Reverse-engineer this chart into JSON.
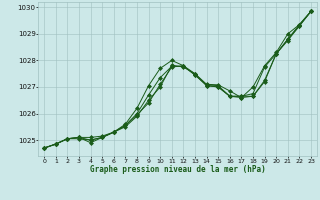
{
  "title": "Graphe pression niveau de la mer (hPa)",
  "bg_color": "#cce8e8",
  "line_color": "#1a5c1a",
  "grid_color": "#a0c0c0",
  "xlim": [
    -0.5,
    23.5
  ],
  "ylim": [
    1024.4,
    1030.2
  ],
  "yticks": [
    1025,
    1026,
    1027,
    1028,
    1029,
    1030
  ],
  "xticks": [
    0,
    1,
    2,
    3,
    4,
    5,
    6,
    7,
    8,
    9,
    10,
    11,
    12,
    13,
    14,
    15,
    16,
    17,
    18,
    19,
    20,
    21,
    22,
    23
  ],
  "series": [
    {
      "x": [
        0,
        1,
        2,
        3,
        4,
        5,
        6,
        7,
        8,
        9,
        10,
        11,
        12,
        13,
        14,
        15,
        16,
        17,
        18,
        19,
        20,
        21,
        22,
        23
      ],
      "y": [
        1024.7,
        1024.85,
        1025.05,
        1025.1,
        1024.9,
        1025.1,
        1025.3,
        1025.5,
        1025.9,
        1026.5,
        1027.0,
        1027.82,
        1027.75,
        1027.5,
        1027.05,
        1027.0,
        1026.65,
        1026.6,
        1027.0,
        1027.8,
        1028.3,
        1029.0,
        1029.35,
        1029.85
      ]
    },
    {
      "x": [
        0,
        1,
        2,
        3,
        4,
        5,
        6,
        7,
        8,
        9,
        10,
        11,
        12,
        13,
        14,
        15,
        16,
        17,
        18,
        19,
        20,
        21,
        22,
        23
      ],
      "y": [
        1024.7,
        1024.85,
        1025.05,
        1025.1,
        1025.0,
        1025.1,
        1025.3,
        1025.55,
        1026.0,
        1026.7,
        1027.35,
        1027.78,
        1027.78,
        1027.45,
        1027.05,
        1027.0,
        1026.65,
        1026.65,
        1026.75,
        1027.75,
        1028.25,
        1028.75,
        1029.3,
        1029.85
      ]
    },
    {
      "x": [
        0,
        1,
        2,
        3,
        4,
        5,
        6,
        7,
        8,
        9,
        10,
        11,
        12,
        13,
        14,
        15,
        16,
        17,
        18,
        19,
        20,
        21,
        22,
        23
      ],
      "y": [
        1024.7,
        1024.85,
        1025.05,
        1025.05,
        1025.0,
        1025.1,
        1025.3,
        1025.6,
        1026.2,
        1027.05,
        1027.7,
        1028.0,
        1027.8,
        1027.45,
        1027.08,
        1027.05,
        1026.65,
        1026.65,
        1026.65,
        1027.2,
        1028.25,
        1028.8,
        1029.3,
        1029.85
      ]
    },
    {
      "x": [
        0,
        1,
        2,
        3,
        4,
        5,
        6,
        7,
        8,
        9,
        10,
        11,
        12,
        13,
        14,
        15,
        16,
        17,
        18,
        19,
        20,
        21,
        22,
        23
      ],
      "y": [
        1024.7,
        1024.85,
        1025.05,
        1025.1,
        1025.1,
        1025.15,
        1025.3,
        1025.55,
        1025.95,
        1026.4,
        1027.1,
        1027.75,
        1027.8,
        1027.5,
        1027.1,
        1027.08,
        1026.85,
        1026.6,
        1026.65,
        1027.25,
        1028.25,
        1028.8,
        1029.35,
        1029.85
      ]
    }
  ]
}
